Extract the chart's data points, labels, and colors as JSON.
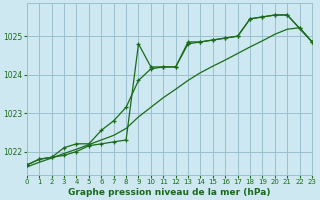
{
  "title": "Graphe pression niveau de la mer (hPa)",
  "bg_color": "#cde8f0",
  "grid_color": "#9bbfcc",
  "line_color1": "#1a6b1a",
  "line_color2": "#1a6b1a",
  "line_color3": "#1a6b1a",
  "xlim": [
    0,
    23
  ],
  "ylim": [
    1021.4,
    1025.85
  ],
  "xticks": [
    0,
    1,
    2,
    3,
    4,
    5,
    6,
    7,
    8,
    9,
    10,
    11,
    12,
    13,
    14,
    15,
    16,
    17,
    18,
    19,
    20,
    21,
    22,
    23
  ],
  "yticks": [
    1022,
    1023,
    1024,
    1025
  ],
  "series_A_x": [
    0,
    1,
    2,
    3,
    4,
    5,
    6,
    7,
    8,
    9,
    10,
    11,
    12,
    13,
    14,
    15,
    16,
    17,
    18,
    19,
    20,
    21,
    22,
    23
  ],
  "series_A_y": [
    1021.65,
    1021.8,
    1021.85,
    1021.9,
    1022.0,
    1022.15,
    1022.2,
    1022.25,
    1022.3,
    1024.8,
    1024.2,
    1024.2,
    1024.2,
    1024.85,
    1024.85,
    1024.9,
    1024.95,
    1025.0,
    1025.45,
    1025.5,
    1025.55,
    1025.55,
    1025.2,
    1024.85
  ],
  "series_B_x": [
    0,
    1,
    2,
    3,
    4,
    5,
    6,
    7,
    8,
    9,
    10,
    11,
    12,
    13,
    14,
    15,
    16,
    17,
    18,
    19,
    20,
    21,
    22,
    23
  ],
  "series_B_y": [
    1021.65,
    1021.8,
    1021.85,
    1022.1,
    1022.2,
    1022.2,
    1022.55,
    1022.8,
    1023.15,
    1023.85,
    1024.15,
    1024.2,
    1024.2,
    1024.8,
    1024.85,
    1024.9,
    1024.95,
    1025.0,
    1025.45,
    1025.5,
    1025.55,
    1025.55,
    1025.2,
    1024.85
  ],
  "series_C_x": [
    0,
    1,
    2,
    3,
    4,
    5,
    6,
    7,
    8,
    9,
    10,
    11,
    12,
    13,
    14,
    15,
    16,
    17,
    18,
    19,
    20,
    21,
    22,
    23
  ],
  "series_C_y": [
    1021.6,
    1021.72,
    1021.83,
    1021.95,
    1022.06,
    1022.18,
    1022.3,
    1022.42,
    1022.6,
    1022.9,
    1023.15,
    1023.4,
    1023.62,
    1023.85,
    1024.05,
    1024.22,
    1024.38,
    1024.55,
    1024.72,
    1024.88,
    1025.05,
    1025.18,
    1025.22,
    1024.85
  ]
}
